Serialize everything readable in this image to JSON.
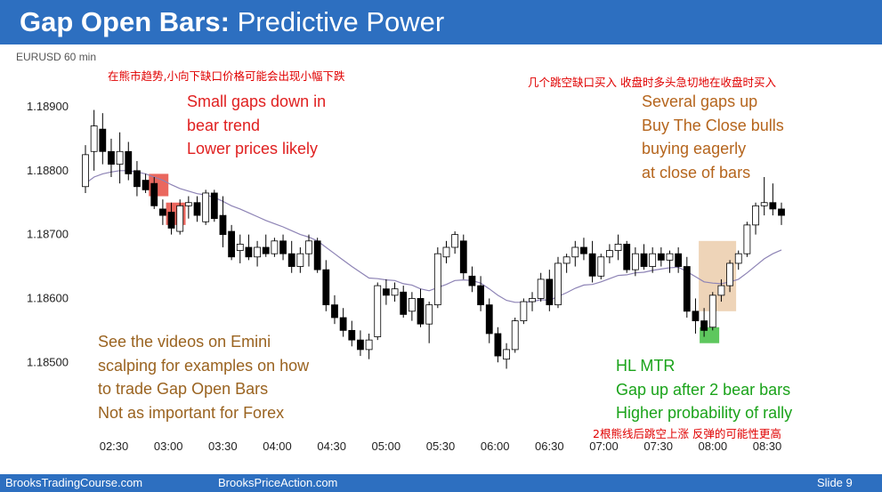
{
  "title": {
    "bold": "Gap Open Bars:",
    "rest": " Predictive Power"
  },
  "instrument": "EURUSD 60 min",
  "annotations": {
    "cn_left": "在熊市趋势,小向下缺口价格可能会出现小幅下跌",
    "cn_right": "几个跳空缺口买入 收盘时多头急切地在收盘时买入",
    "cn_bottom": "2根熊线后跳空上涨 反弹的可能性更高",
    "left_top": "Small gaps down in\nbear trend\nLower prices likely",
    "right_top": "Several gaps up\nBuy The Close bulls\nbuying eagerly\nat close of bars",
    "left_bottom": "See the videos on Emini\nscalping for examples on how\nto trade Gap Open Bars\nNot as important for Forex",
    "right_bottom": "HL MTR\nGap up after 2 bear bars\nHigher probability of rally"
  },
  "footer": {
    "left": "BrooksTradingCourse.com",
    "center": "BrooksPriceAction.com",
    "slide": "Slide 9"
  },
  "colors": {
    "title_bg": "#2d6fc0",
    "bull": "#ffffff",
    "bear": "#000000",
    "ema": "#8d83b5",
    "gap_down_highlight": "#e8574c",
    "gap_up_highlight": "#eccfb0",
    "mtr_highlight": "#4cc14c"
  },
  "chart_data": {
    "type": "candlestick",
    "ylim": [
      1.1846,
      1.189
    ],
    "yticks": [
      "1.18500",
      "1.18600",
      "1.18700",
      "1.18800",
      "1.18900"
    ],
    "xticks": [
      "02:30",
      "03:00",
      "03:30",
      "04:00",
      "04:30",
      "05:00",
      "05:30",
      "06:00",
      "06:30",
      "07:00",
      "07:30",
      "08:00",
      "08:30"
    ],
    "ohlc": [
      [
        1.18775,
        1.1884,
        1.18765,
        1.18825
      ],
      [
        1.1883,
        1.18895,
        1.188,
        1.1887
      ],
      [
        1.18865,
        1.1889,
        1.1881,
        1.1883
      ],
      [
        1.1883,
        1.1885,
        1.1879,
        1.1881
      ],
      [
        1.1881,
        1.1886,
        1.1878,
        1.1883
      ],
      [
        1.1883,
        1.18845,
        1.18785,
        1.18795
      ],
      [
        1.188,
        1.18815,
        1.1876,
        1.18775
      ],
      [
        1.18785,
        1.18795,
        1.18765,
        1.1877
      ],
      [
        1.1878,
        1.1879,
        1.1874,
        1.18745
      ],
      [
        1.1874,
        1.18755,
        1.18715,
        1.1873
      ],
      [
        1.18735,
        1.1875,
        1.187,
        1.1871
      ],
      [
        1.18705,
        1.18755,
        1.187,
        1.18745
      ],
      [
        1.18745,
        1.1876,
        1.18725,
        1.1875
      ],
      [
        1.1875,
        1.1876,
        1.1872,
        1.1873
      ],
      [
        1.1872,
        1.1877,
        1.18715,
        1.18765
      ],
      [
        1.18765,
        1.1877,
        1.1872,
        1.18725
      ],
      [
        1.1873,
        1.1876,
        1.1868,
        1.187
      ],
      [
        1.18705,
        1.18715,
        1.1866,
        1.18665
      ],
      [
        1.18675,
        1.187,
        1.18655,
        1.18685
      ],
      [
        1.1868,
        1.187,
        1.1866,
        1.18665
      ],
      [
        1.18665,
        1.1869,
        1.1865,
        1.1868
      ],
      [
        1.1868,
        1.187,
        1.18665,
        1.1867
      ],
      [
        1.1867,
        1.18695,
        1.18665,
        1.1869
      ],
      [
        1.1869,
        1.187,
        1.1866,
        1.1867
      ],
      [
        1.1867,
        1.1869,
        1.1864,
        1.1865
      ],
      [
        1.1865,
        1.1868,
        1.1864,
        1.1867
      ],
      [
        1.1867,
        1.187,
        1.1865,
        1.1869
      ],
      [
        1.1869,
        1.18695,
        1.1864,
        1.18645
      ],
      [
        1.18645,
        1.1866,
        1.1858,
        1.1859
      ],
      [
        1.1859,
        1.18605,
        1.1856,
        1.1857
      ],
      [
        1.1857,
        1.18585,
        1.1854,
        1.1855
      ],
      [
        1.1855,
        1.18565,
        1.18525,
        1.18535
      ],
      [
        1.18535,
        1.1855,
        1.1851,
        1.1852
      ],
      [
        1.1852,
        1.18545,
        1.18505,
        1.18535
      ],
      [
        1.1854,
        1.18625,
        1.18535,
        1.1862
      ],
      [
        1.18615,
        1.1863,
        1.1859,
        1.18605
      ],
      [
        1.18605,
        1.18625,
        1.18595,
        1.18615
      ],
      [
        1.1861,
        1.1862,
        1.1857,
        1.18575
      ],
      [
        1.1858,
        1.1861,
        1.18565,
        1.186
      ],
      [
        1.186,
        1.18615,
        1.18555,
        1.1856
      ],
      [
        1.1856,
        1.18595,
        1.1853,
        1.1859
      ],
      [
        1.1859,
        1.1868,
        1.18585,
        1.1867
      ],
      [
        1.18665,
        1.1869,
        1.18655,
        1.1868
      ],
      [
        1.1868,
        1.18705,
        1.1867,
        1.187
      ],
      [
        1.1869,
        1.187,
        1.1863,
        1.1864
      ],
      [
        1.18635,
        1.1865,
        1.1861,
        1.1862
      ],
      [
        1.1862,
        1.18635,
        1.1858,
        1.1859
      ],
      [
        1.1859,
        1.186,
        1.1853,
        1.18545
      ],
      [
        1.18545,
        1.18555,
        1.185,
        1.1851
      ],
      [
        1.18505,
        1.1853,
        1.1849,
        1.1852
      ],
      [
        1.1852,
        1.1857,
        1.18515,
        1.18565
      ],
      [
        1.18565,
        1.186,
        1.1856,
        1.18595
      ],
      [
        1.18595,
        1.1861,
        1.1858,
        1.186
      ],
      [
        1.186,
        1.1864,
        1.18595,
        1.1863
      ],
      [
        1.1863,
        1.18645,
        1.1858,
        1.1859
      ],
      [
        1.1859,
        1.18665,
        1.18585,
        1.18655
      ],
      [
        1.18655,
        1.1867,
        1.1864,
        1.18665
      ],
      [
        1.18665,
        1.1869,
        1.1865,
        1.1868
      ],
      [
        1.1868,
        1.18695,
        1.1866,
        1.1867
      ],
      [
        1.1867,
        1.1869,
        1.18625,
        1.18635
      ],
      [
        1.18635,
        1.1867,
        1.1863,
        1.18665
      ],
      [
        1.18665,
        1.18685,
        1.18655,
        1.18675
      ],
      [
        1.18675,
        1.187,
        1.1866,
        1.18685
      ],
      [
        1.18685,
        1.1869,
        1.1864,
        1.18645
      ],
      [
        1.18645,
        1.1868,
        1.18635,
        1.1867
      ],
      [
        1.1867,
        1.18685,
        1.18645,
        1.1865
      ],
      [
        1.1865,
        1.1868,
        1.1864,
        1.1867
      ],
      [
        1.1867,
        1.1868,
        1.1865,
        1.1866
      ],
      [
        1.1866,
        1.18675,
        1.1864,
        1.1867
      ],
      [
        1.1867,
        1.1868,
        1.1864,
        1.1865
      ],
      [
        1.1865,
        1.18665,
        1.1857,
        1.1858
      ],
      [
        1.1858,
        1.186,
        1.18545,
        1.18565
      ],
      [
        1.18565,
        1.18585,
        1.1854,
        1.1855
      ],
      [
        1.18555,
        1.1861,
        1.1855,
        1.18605
      ],
      [
        1.18605,
        1.1863,
        1.18595,
        1.1862
      ],
      [
        1.1862,
        1.1866,
        1.1861,
        1.18655
      ],
      [
        1.18655,
        1.18675,
        1.18645,
        1.1867
      ],
      [
        1.1867,
        1.1872,
        1.18665,
        1.18715
      ],
      [
        1.18715,
        1.1875,
        1.187,
        1.18745
      ],
      [
        1.18745,
        1.1879,
        1.1873,
        1.1875
      ],
      [
        1.1875,
        1.1878,
        1.1873,
        1.1874
      ],
      [
        1.1874,
        1.1875,
        1.18715,
        1.1873
      ]
    ],
    "ema20": [
      1.1878,
      1.1879,
      1.18795,
      1.18798,
      1.188,
      1.188,
      1.18798,
      1.18795,
      1.1879,
      1.18785,
      1.18778,
      1.18772,
      1.18768,
      1.18764,
      1.18762,
      1.18758,
      1.18752,
      1.18745,
      1.1874,
      1.18734,
      1.18728,
      1.18722,
      1.18717,
      1.18712,
      1.18706,
      1.187,
      1.18696,
      1.1869,
      1.1868,
      1.1867,
      1.1866,
      1.1865,
      1.18641,
      1.18632,
      1.18631,
      1.18629,
      1.18628,
      1.18623,
      1.18621,
      1.18615,
      1.18612,
      1.18617,
      1.18622,
      1.18628,
      1.18629,
      1.18628,
      1.18624,
      1.18615,
      1.18605,
      1.18597,
      1.18594,
      1.18594,
      1.18595,
      1.18598,
      1.18597,
      1.18603,
      1.18609,
      1.18616,
      1.18621,
      1.18622,
      1.18626,
      1.18631,
      1.18636,
      1.18637,
      1.1864,
      1.18641,
      1.18644,
      1.18646,
      1.18648,
      1.18649,
      1.18642,
      1.18634,
      1.18626,
      1.18624,
      1.18623,
      1.18626,
      1.1863,
      1.1864,
      1.18651,
      1.18662,
      1.1867,
      1.18676
    ]
  }
}
